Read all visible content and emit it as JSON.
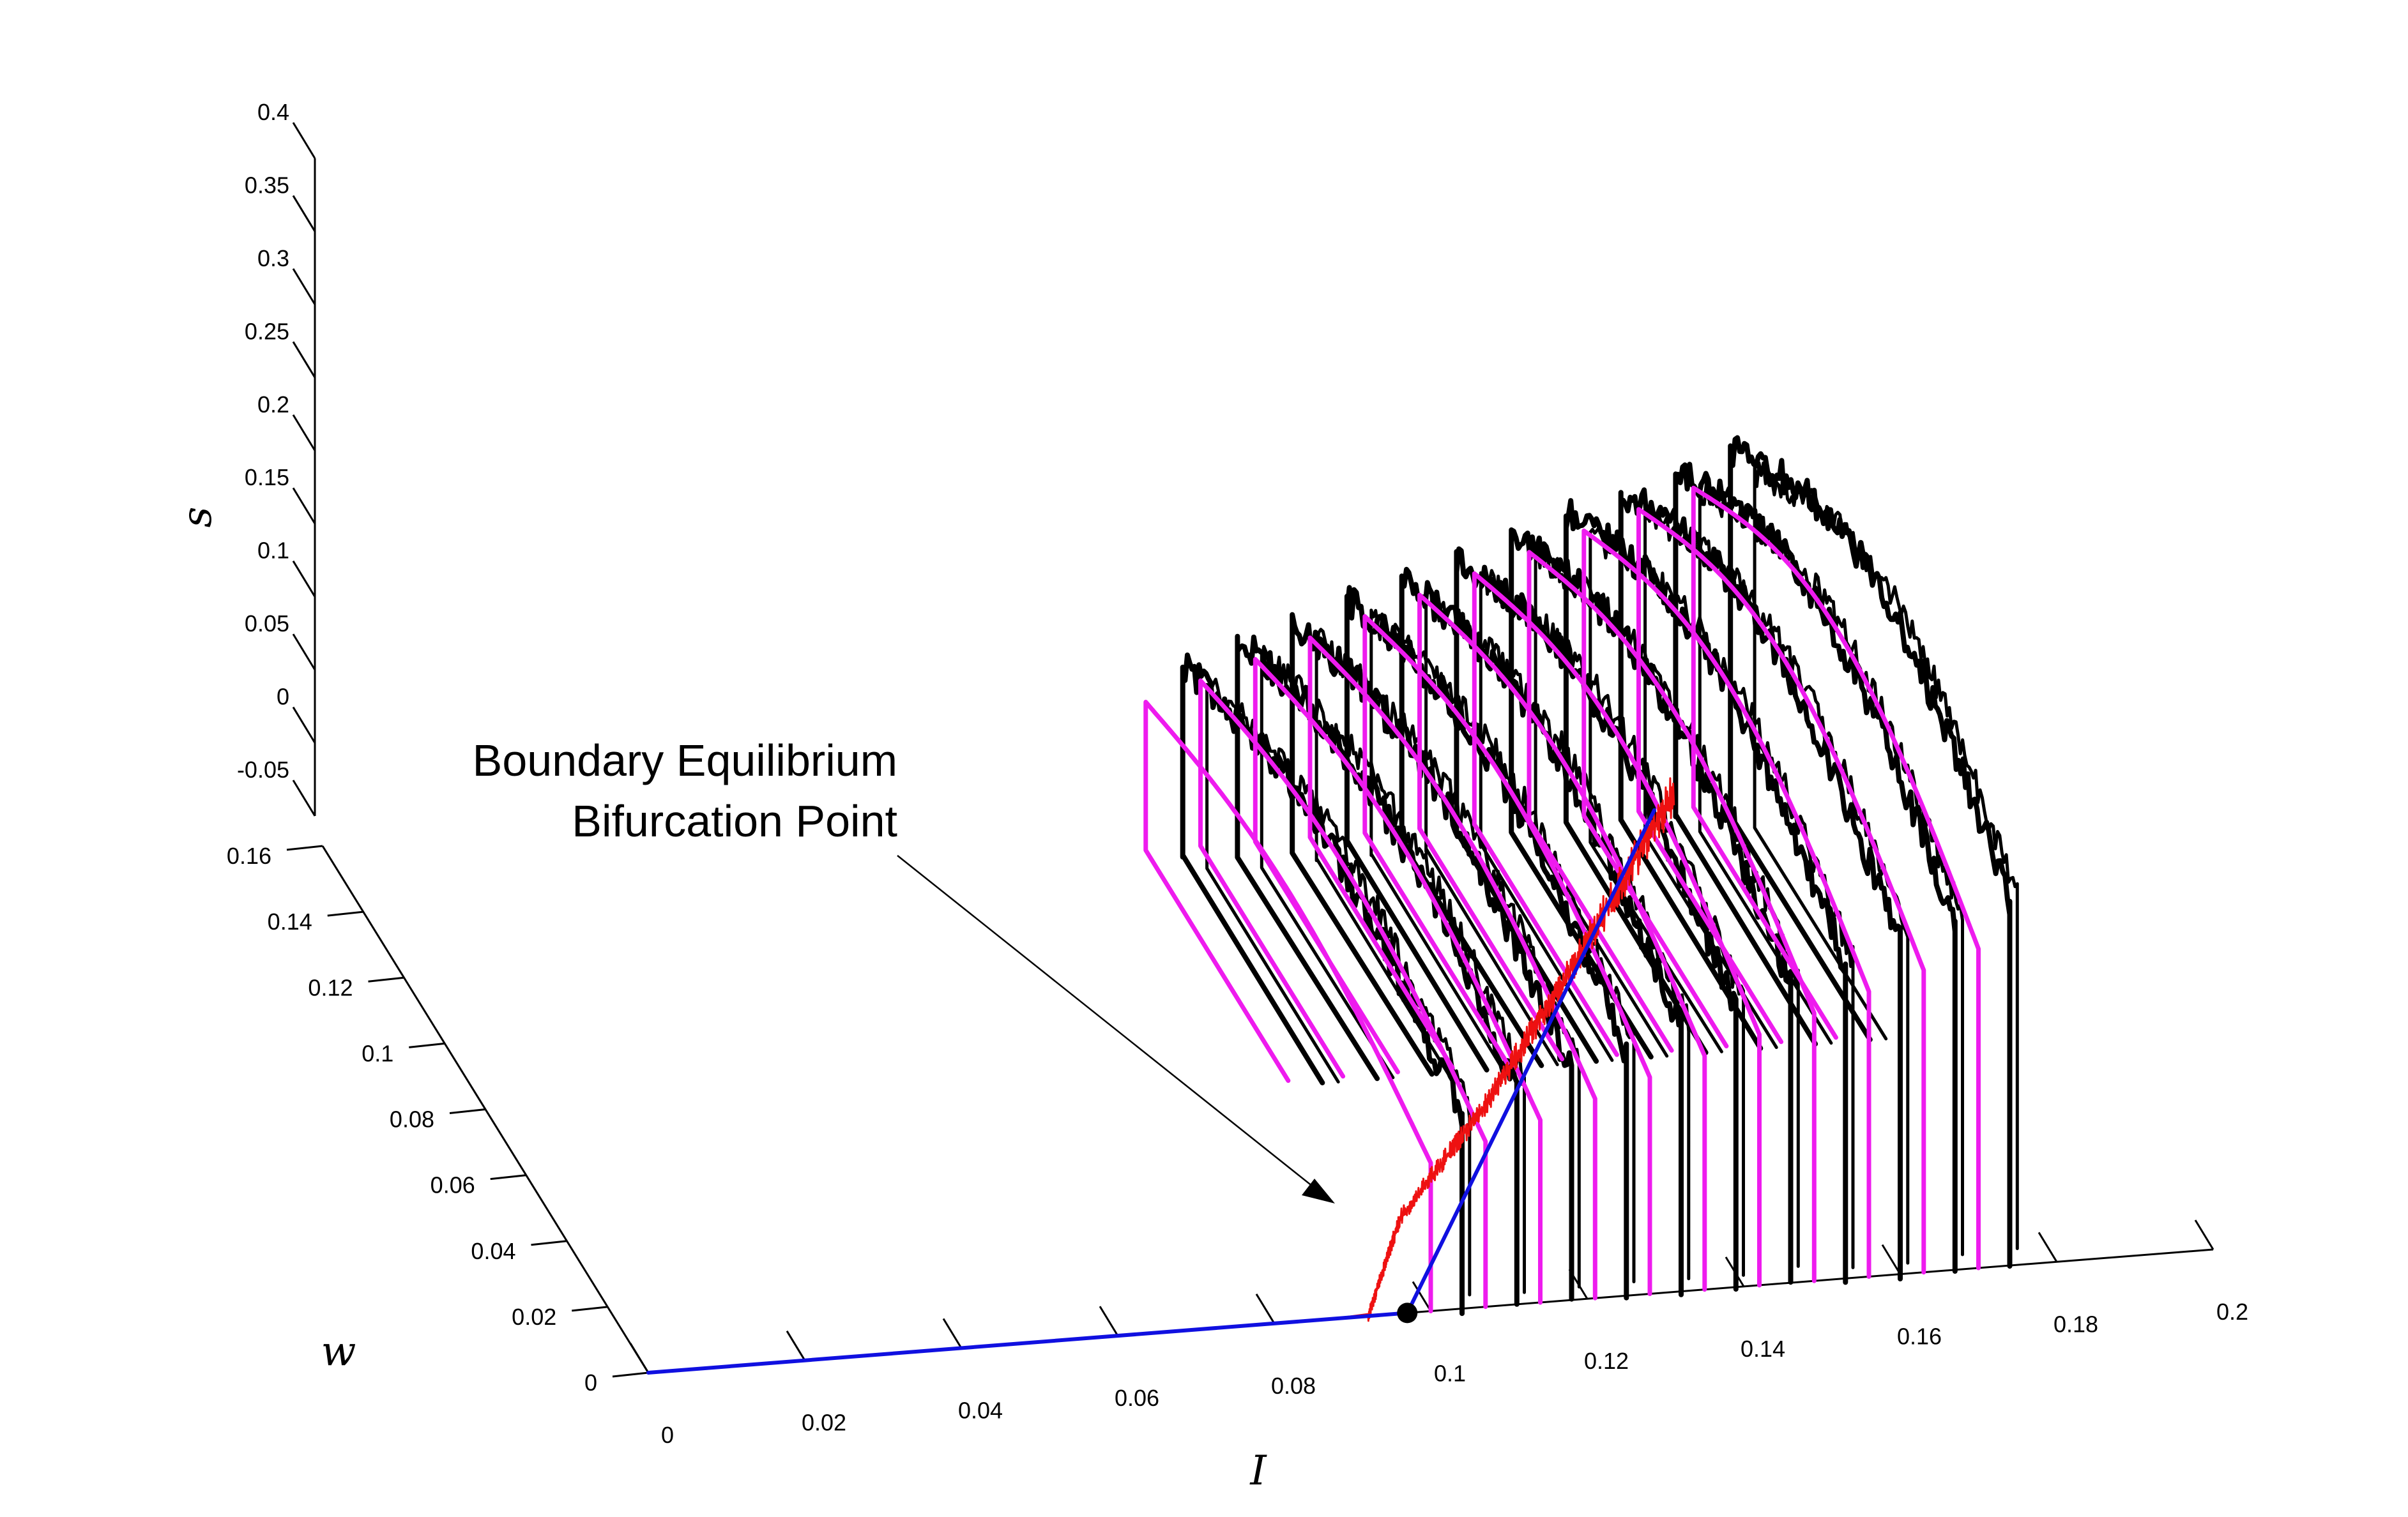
{
  "chart_data": {
    "type": "line",
    "projection": "3d",
    "title": "",
    "xlabel": "I",
    "ylabel": "w",
    "zlabel": "s",
    "xlim": [
      0,
      0.2
    ],
    "ylim": [
      0,
      0.16
    ],
    "zlim": [
      -0.05,
      0.4
    ],
    "x_ticks": [
      "0",
      "0.02",
      "0.04",
      "0.06",
      "0.08",
      "0.1",
      "0.12",
      "0.14",
      "0.16",
      "0.18",
      "0.2"
    ],
    "y_ticks": [
      "0",
      "0.02",
      "0.04",
      "0.06",
      "0.08",
      "0.1",
      "0.12",
      "0.14",
      "0.16"
    ],
    "z_ticks": [
      "-0.05",
      "0",
      "0.05",
      "0.1",
      "0.15",
      "0.2",
      "0.25",
      "0.3",
      "0.35",
      "0.4"
    ],
    "grid": false,
    "legend": "none",
    "series": [
      {
        "kind": "equilibrium-branch",
        "color": "#1010e0",
        "points": [
          [
            0.0,
            0.0,
            0.0
          ],
          [
            0.097,
            0.0,
            0.0
          ],
          [
            0.165,
            0.14,
            0.0
          ]
        ]
      },
      {
        "kind": "stochastic-mean-trajectory",
        "color": "#ee1111",
        "points": [
          [
            0.0,
            0.0,
            0.0
          ],
          [
            0.092,
            0.0,
            0.0
          ],
          [
            0.1,
            0.015,
            0.03
          ],
          [
            0.12,
            0.05,
            0.02
          ],
          [
            0.14,
            0.085,
            0.025
          ],
          [
            0.165,
            0.13,
            0.035
          ]
        ]
      },
      {
        "kind": "deterministic-limit-cycles",
        "color": "#ee1bee",
        "I_values": [
          0.1,
          0.107,
          0.114,
          0.121,
          0.128,
          0.135,
          0.142,
          0.149,
          0.156,
          0.163,
          0.17
        ],
        "w_range": [
          0.0,
          0.14
        ],
        "s_peak": [
          0.13,
          0.145,
          0.16,
          0.175,
          0.19,
          0.205,
          0.22,
          0.235,
          0.25,
          0.265,
          0.28
        ]
      },
      {
        "kind": "stochastic-cycles",
        "color": "#000000",
        "I_values": [
          0.1,
          0.107,
          0.114,
          0.121,
          0.128,
          0.135,
          0.142,
          0.149,
          0.156,
          0.163,
          0.17
        ],
        "s_peak": [
          0.17,
          0.19,
          0.2,
          0.215,
          0.23,
          0.245,
          0.26,
          0.275,
          0.29,
          0.305,
          0.32
        ]
      }
    ],
    "marker": {
      "label": "Boundary Equilibrium Bifurcation Point",
      "point": [
        0.097,
        0.0,
        0.0
      ]
    },
    "annotation": {
      "line1": "Boundary Equilibrium",
      "line2": "Bifurcation Point"
    }
  }
}
